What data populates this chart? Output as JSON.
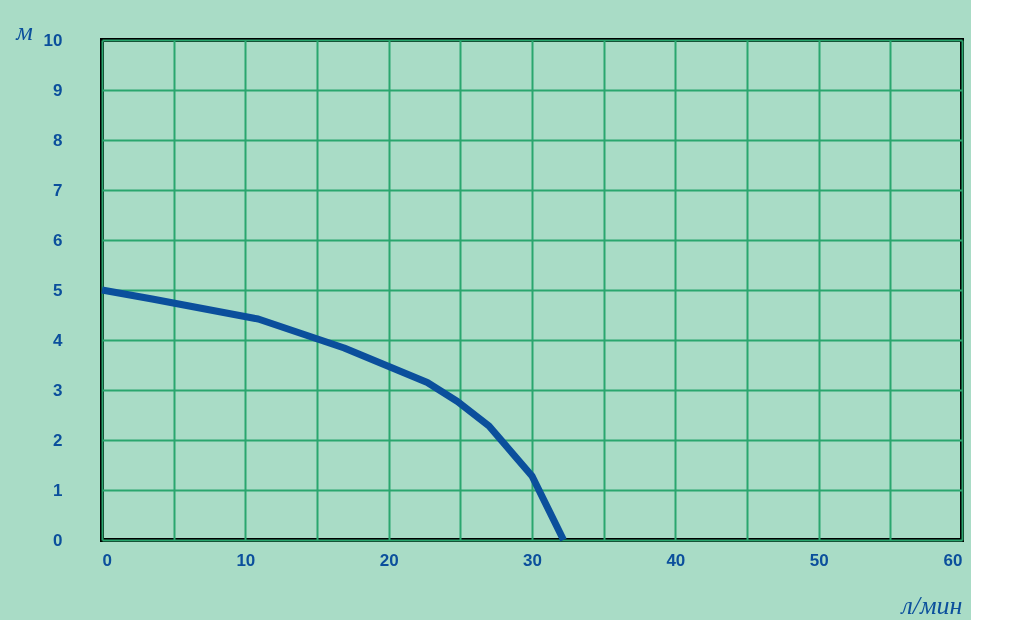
{
  "chart_data": {
    "type": "line",
    "xlabel": "л/мин",
    "ylabel": "м",
    "series": [
      {
        "color": "#0b4f9c",
        "x": [
          0,
          3.5,
          10.9,
          16.9,
          22.7,
          24.8,
          27,
          30,
          32.2
        ],
        "values": [
          5,
          4.82,
          4.42,
          3.84,
          3.15,
          2.77,
          2.28,
          1.28,
          0
        ]
      }
    ],
    "xlim": [
      0,
      60
    ],
    "ylim": [
      0,
      10
    ],
    "xticks": [
      0,
      {
        "value": 5,
        "label": null
      },
      10,
      {
        "value": 15,
        "label": null
      },
      20,
      {
        "value": 25,
        "label": null
      },
      30,
      {
        "value": 35,
        "label": null
      },
      40,
      {
        "value": 45,
        "label": null
      },
      50,
      {
        "value": 55,
        "label": null
      },
      60
    ],
    "yticks": [
      0,
      1,
      2,
      3,
      4,
      5,
      6,
      7,
      8,
      9,
      10
    ],
    "grid": true,
    "marker": "none",
    "line_style": "solid"
  }
}
